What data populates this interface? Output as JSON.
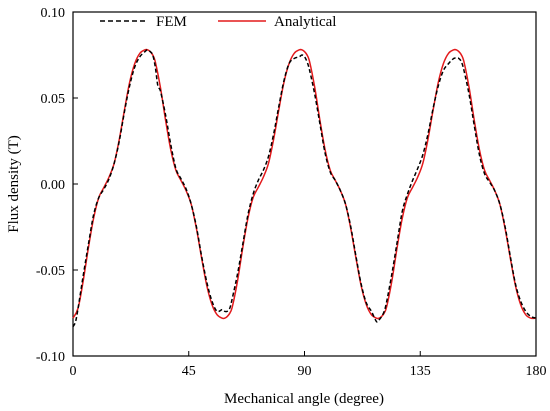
{
  "chart_data": {
    "type": "line",
    "xlabel": "Mechanical angle (degree)",
    "ylabel": "Flux density (T)",
    "xlim": [
      0,
      180
    ],
    "ylim": [
      -0.1,
      0.1
    ],
    "x_ticks": [
      0,
      45,
      90,
      135,
      180
    ],
    "x_tick_labels": [
      "0",
      "45",
      "90",
      "135",
      "180"
    ],
    "y_ticks": [
      -0.1,
      -0.05,
      0,
      0.05,
      0.1
    ],
    "y_tick_labels": [
      "-0.10",
      "-0.05",
      "0.00",
      "0.05",
      "0.10"
    ],
    "grid": false,
    "legend_position": "top-left",
    "series": [
      {
        "name": "FEM",
        "color": "#000000",
        "style": "dashed",
        "x": [
          0,
          1,
          2,
          4,
          6,
          8,
          10,
          12,
          14,
          16,
          18,
          20,
          22,
          24,
          26,
          28,
          29,
          30,
          31,
          32,
          33,
          34,
          36,
          38,
          40,
          42,
          44,
          46,
          48,
          50,
          52,
          54,
          56,
          58,
          59,
          60,
          61,
          62,
          64,
          66,
          68,
          70,
          72,
          74,
          76,
          78,
          80,
          82,
          84,
          86,
          88,
          89,
          90,
          91,
          92,
          94,
          96,
          98,
          100,
          102,
          104,
          106,
          108,
          110,
          112,
          114,
          116,
          118,
          119,
          120,
          121,
          122,
          124,
          126,
          128,
          130,
          132,
          134,
          136,
          138,
          140,
          142,
          144,
          146,
          148,
          149,
          150,
          151,
          152,
          154,
          156,
          158,
          160,
          162,
          164,
          166,
          168,
          170,
          172,
          174,
          176,
          178,
          180
        ],
        "y": [
          -0.083,
          -0.08,
          -0.072,
          -0.053,
          -0.035,
          -0.018,
          -0.008,
          -0.003,
          0.003,
          0.012,
          0.025,
          0.042,
          0.057,
          0.068,
          0.074,
          0.077,
          0.078,
          0.077,
          0.075,
          0.068,
          0.057,
          0.054,
          0.04,
          0.023,
          0.009,
          0.003,
          -0.003,
          -0.012,
          -0.025,
          -0.042,
          -0.057,
          -0.068,
          -0.074,
          -0.073,
          -0.074,
          -0.074,
          -0.072,
          -0.066,
          -0.052,
          -0.035,
          -0.018,
          -0.006,
          0.002,
          0.008,
          0.016,
          0.029,
          0.045,
          0.06,
          0.07,
          0.073,
          0.074,
          0.075,
          0.074,
          0.071,
          0.066,
          0.052,
          0.035,
          0.018,
          0.007,
          0.002,
          -0.004,
          -0.012,
          -0.025,
          -0.042,
          -0.058,
          -0.069,
          -0.074,
          -0.08,
          -0.079,
          -0.077,
          -0.074,
          -0.068,
          -0.052,
          -0.034,
          -0.016,
          -0.006,
          0.002,
          0.009,
          0.017,
          0.029,
          0.044,
          0.057,
          0.066,
          0.07,
          0.073,
          0.073,
          0.073,
          0.071,
          0.066,
          0.052,
          0.034,
          0.017,
          0.006,
          0.001,
          -0.004,
          -0.012,
          -0.025,
          -0.042,
          -0.058,
          -0.068,
          -0.074,
          -0.077,
          -0.078
        ]
      },
      {
        "name": "Analytical",
        "color": "#e31a1c",
        "style": "solid",
        "x": [
          0,
          2,
          4,
          6,
          8,
          10,
          12,
          14,
          16,
          18,
          20,
          22,
          24,
          26,
          28,
          29,
          30,
          31,
          32,
          34,
          36,
          38,
          40,
          42,
          44,
          46,
          48,
          50,
          52,
          54,
          56,
          58,
          59,
          60,
          61,
          62,
          64,
          66,
          68,
          70,
          72,
          74,
          76,
          78,
          80,
          82,
          84,
          86,
          88,
          89,
          90,
          91,
          92,
          94,
          96,
          98,
          100,
          102,
          104,
          106,
          108,
          110,
          112,
          114,
          116,
          118,
          119,
          120,
          121,
          122,
          124,
          126,
          128,
          130,
          132,
          134,
          136,
          138,
          140,
          142,
          144,
          146,
          148,
          149,
          150,
          151,
          152,
          154,
          156,
          158,
          160,
          162,
          164,
          166,
          168,
          170,
          172,
          174,
          176,
          178,
          180
        ],
        "y": [
          -0.078,
          -0.072,
          -0.056,
          -0.037,
          -0.02,
          -0.008,
          -0.002,
          0.004,
          0.012,
          0.026,
          0.043,
          0.059,
          0.07,
          0.076,
          0.078,
          0.078,
          0.077,
          0.075,
          0.071,
          0.056,
          0.037,
          0.02,
          0.008,
          0.002,
          -0.004,
          -0.012,
          -0.026,
          -0.043,
          -0.059,
          -0.07,
          -0.076,
          -0.078,
          -0.078,
          -0.077,
          -0.075,
          -0.071,
          -0.056,
          -0.037,
          -0.02,
          -0.008,
          -0.002,
          0.004,
          0.012,
          0.026,
          0.043,
          0.059,
          0.07,
          0.076,
          0.078,
          0.078,
          0.077,
          0.075,
          0.071,
          0.056,
          0.037,
          0.02,
          0.008,
          0.002,
          -0.004,
          -0.012,
          -0.026,
          -0.043,
          -0.059,
          -0.07,
          -0.076,
          -0.078,
          -0.078,
          -0.077,
          -0.075,
          -0.071,
          -0.056,
          -0.037,
          -0.02,
          -0.008,
          -0.002,
          0.004,
          0.012,
          0.026,
          0.043,
          0.059,
          0.07,
          0.076,
          0.078,
          0.078,
          0.077,
          0.075,
          0.071,
          0.056,
          0.037,
          0.02,
          0.008,
          0.002,
          -0.004,
          -0.012,
          -0.026,
          -0.043,
          -0.059,
          -0.07,
          -0.076,
          -0.078,
          -0.078
        ]
      }
    ]
  }
}
